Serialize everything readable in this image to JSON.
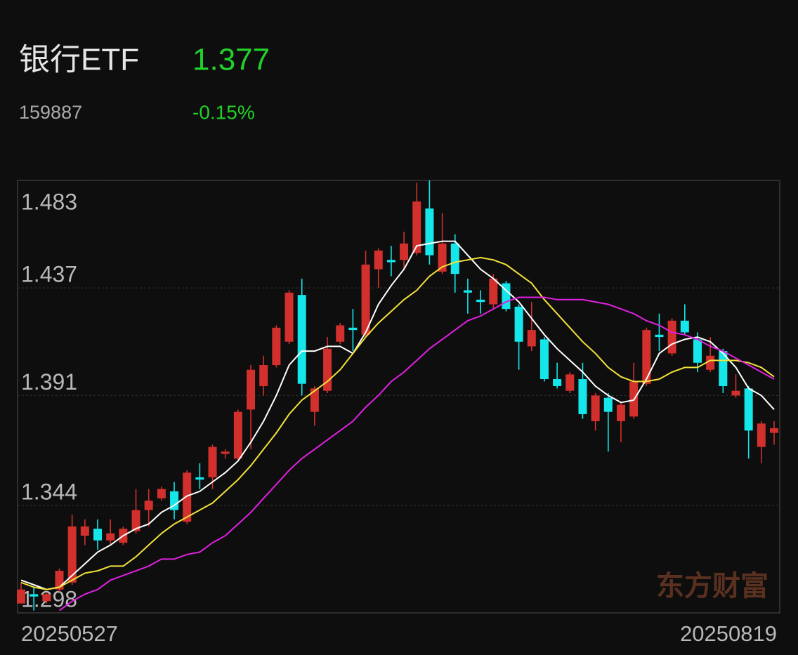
{
  "header": {
    "title": "银行ETF",
    "price": "1.377",
    "code": "159887",
    "change": "-0.15%"
  },
  "watermark": "东方财富",
  "chart_data": {
    "type": "candlestick",
    "categories": [
      "20250527",
      null,
      null,
      null,
      null,
      null,
      null,
      null,
      null,
      null,
      null,
      null,
      null,
      null,
      null,
      null,
      null,
      null,
      null,
      null,
      null,
      null,
      null,
      null,
      null,
      null,
      null,
      null,
      null,
      null,
      null,
      null,
      null,
      null,
      null,
      null,
      null,
      null,
      null,
      null,
      null,
      null,
      null,
      null,
      null,
      null,
      null,
      null,
      null,
      null,
      null,
      null,
      null,
      null,
      null,
      null,
      null,
      null,
      null,
      "20250819"
    ],
    "open": [
      1.302,
      1.306,
      1.303,
      1.308,
      1.311,
      1.331,
      1.334,
      1.329,
      1.328,
      1.333,
      1.342,
      1.347,
      1.35,
      1.337,
      1.356,
      1.356,
      1.366,
      1.364,
      1.385,
      1.395,
      1.404,
      1.414,
      1.434,
      1.384,
      1.393,
      1.414,
      1.42,
      1.417,
      1.445,
      1.449,
      1.449,
      1.452,
      1.471,
      1.444,
      1.456,
      1.436,
      1.432,
      1.43,
      1.439,
      1.429,
      1.412,
      1.415,
      1.398,
      1.393,
      1.398,
      1.38,
      1.39,
      1.38,
      1.382,
      1.396,
      1.417,
      1.409,
      1.423,
      1.415,
      1.402,
      1.41,
      1.391,
      1.394,
      1.369,
      1.375
    ],
    "high": [
      1.311,
      1.309,
      1.307,
      1.317,
      1.34,
      1.338,
      1.338,
      1.338,
      1.335,
      1.351,
      1.351,
      1.352,
      1.354,
      1.359,
      1.362,
      1.37,
      1.368,
      1.385,
      1.404,
      1.408,
      1.421,
      1.436,
      1.441,
      1.395,
      1.416,
      1.422,
      1.428,
      1.453,
      1.454,
      1.455,
      1.461,
      1.482,
      1.483,
      1.469,
      1.46,
      1.441,
      1.436,
      1.443,
      1.44,
      1.43,
      1.431,
      1.416,
      1.405,
      1.401,
      1.405,
      1.392,
      1.392,
      1.388,
      1.405,
      1.42,
      1.426,
      1.424,
      1.43,
      1.418,
      1.416,
      1.411,
      1.4,
      1.395,
      1.38,
      1.38
    ],
    "low": [
      1.302,
      1.299,
      1.302,
      1.307,
      1.31,
      1.327,
      1.325,
      1.327,
      1.327,
      1.332,
      1.335,
      1.346,
      1.338,
      1.336,
      1.351,
      1.351,
      1.364,
      1.363,
      1.368,
      1.391,
      1.403,
      1.413,
      1.391,
      1.378,
      1.392,
      1.413,
      1.41,
      1.416,
      1.437,
      1.442,
      1.445,
      1.451,
      1.447,
      1.443,
      1.435,
      1.426,
      1.426,
      1.428,
      1.427,
      1.402,
      1.41,
      1.397,
      1.394,
      1.392,
      1.381,
      1.376,
      1.367,
      1.371,
      1.381,
      1.395,
      1.41,
      1.408,
      1.417,
      1.401,
      1.401,
      1.392,
      1.39,
      1.364,
      1.362,
      1.37
    ],
    "close": [
      1.308,
      1.305,
      1.306,
      1.316,
      1.335,
      1.335,
      1.329,
      1.332,
      1.334,
      1.342,
      1.346,
      1.351,
      1.342,
      1.358,
      1.355,
      1.369,
      1.367,
      1.384,
      1.402,
      1.404,
      1.42,
      1.435,
      1.396,
      1.394,
      1.411,
      1.421,
      1.419,
      1.447,
      1.453,
      1.448,
      1.456,
      1.474,
      1.451,
      1.456,
      1.443,
      1.435,
      1.431,
      1.441,
      1.428,
      1.414,
      1.419,
      1.398,
      1.395,
      1.4,
      1.383,
      1.391,
      1.384,
      1.387,
      1.397,
      1.419,
      1.416,
      1.423,
      1.418,
      1.405,
      1.408,
      1.395,
      1.393,
      1.376,
      1.379,
      1.377
    ],
    "up_color": "#d2302c",
    "down_color": "#14e6ea",
    "lines": [
      {
        "color": "#ffffff",
        "values": [
          1.312,
          1.31,
          1.308,
          1.309,
          1.314,
          1.319,
          1.324,
          1.327,
          1.331,
          1.334,
          1.336,
          1.341,
          1.344,
          1.348,
          1.35,
          1.354,
          1.358,
          1.363,
          1.371,
          1.38,
          1.391,
          1.404,
          1.41,
          1.41,
          1.412,
          1.412,
          1.409,
          1.418,
          1.43,
          1.438,
          1.445,
          1.455,
          1.456,
          1.457,
          1.457,
          1.451,
          1.445,
          1.441,
          1.436,
          1.431,
          1.424,
          1.417,
          1.411,
          1.406,
          1.401,
          1.395,
          1.391,
          1.388,
          1.389,
          1.398,
          1.409,
          1.413,
          1.415,
          1.416,
          1.414,
          1.409,
          1.403,
          1.394,
          1.391,
          1.385
        ]
      },
      {
        "color": "#f2e23a",
        "values": [
          1.311,
          1.309,
          1.308,
          1.309,
          1.312,
          1.315,
          1.316,
          1.318,
          1.318,
          1.322,
          1.327,
          1.332,
          1.336,
          1.339,
          1.342,
          1.345,
          1.35,
          1.355,
          1.361,
          1.368,
          1.375,
          1.383,
          1.389,
          1.393,
          1.397,
          1.402,
          1.409,
          1.416,
          1.422,
          1.427,
          1.432,
          1.436,
          1.442,
          1.446,
          1.448,
          1.449,
          1.45,
          1.449,
          1.447,
          1.443,
          1.439,
          1.432,
          1.426,
          1.42,
          1.414,
          1.409,
          1.403,
          1.399,
          1.397,
          1.397,
          1.398,
          1.401,
          1.403,
          1.403,
          1.406,
          1.406,
          1.406,
          1.405,
          1.403,
          1.399
        ]
      },
      {
        "color": "#e020e0",
        "values": [
          null,
          null,
          null,
          1.299,
          1.303,
          1.306,
          1.308,
          1.312,
          1.314,
          1.316,
          1.318,
          1.321,
          1.321,
          1.323,
          1.324,
          1.328,
          1.331,
          1.336,
          1.341,
          1.347,
          1.353,
          1.359,
          1.364,
          1.368,
          1.372,
          1.376,
          1.38,
          1.386,
          1.391,
          1.397,
          1.401,
          1.406,
          1.411,
          1.415,
          1.419,
          1.423,
          1.425,
          1.428,
          1.431,
          1.433,
          1.433,
          1.433,
          1.432,
          1.432,
          1.432,
          1.431,
          1.43,
          1.428,
          1.426,
          1.423,
          1.421,
          1.418,
          1.417,
          1.415,
          1.412,
          1.41,
          1.407,
          1.404,
          1.401,
          1.398
        ]
      }
    ],
    "ylim": [
      1.298,
      1.483
    ],
    "yticks": [
      1.298,
      1.344,
      1.391,
      1.437,
      1.483
    ],
    "grid": true
  }
}
